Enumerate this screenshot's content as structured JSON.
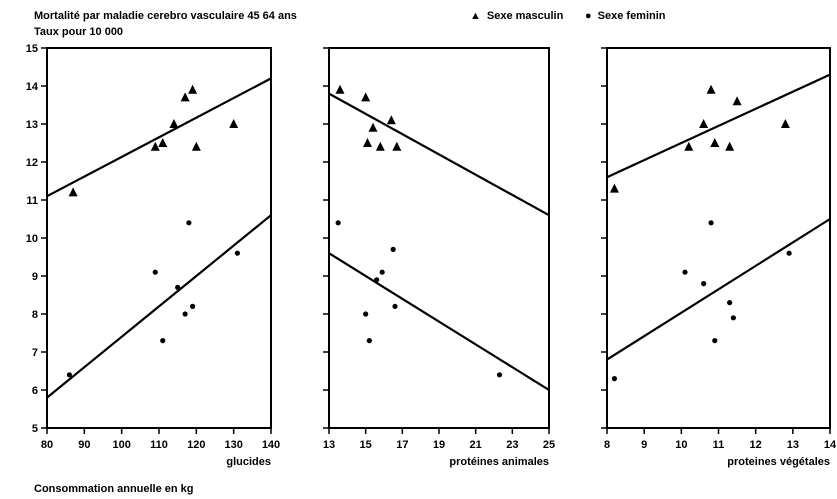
{
  "title": "Mortalité par maladie cerebro vasculaire 45 64 ans",
  "ylabel": "Taux pour 10 000",
  "legend": {
    "male": "Sexe masculin",
    "female": "Sexe feminin"
  },
  "footer": "Consommation annuelle en kg",
  "chart_data": [
    {
      "type": "scatter",
      "xlabel": "glucides",
      "xlim": [
        80,
        140
      ],
      "ylim": [
        5,
        15
      ],
      "xticks": [
        "80",
        "90",
        "100",
        "110",
        "120",
        "130",
        "140"
      ],
      "yticks": [
        "5",
        "6",
        "7",
        "8",
        "9",
        "10",
        "11",
        "12",
        "13",
        "14",
        "15"
      ],
      "series": [
        {
          "name": "Sexe masculin",
          "marker": "triangle",
          "points": [
            [
              87,
              11.2
            ],
            [
              109,
              12.4
            ],
            [
              111,
              12.5
            ],
            [
              114,
              13.0
            ],
            [
              117,
              13.7
            ],
            [
              119,
              13.9
            ],
            [
              120,
              12.4
            ],
            [
              130,
              13.0
            ]
          ],
          "fit": [
            [
              80,
              11.1
            ],
            [
              140,
              14.2
            ]
          ]
        },
        {
          "name": "Sexe feminin",
          "marker": "dot",
          "points": [
            [
              86,
              6.4
            ],
            [
              109,
              9.1
            ],
            [
              111,
              7.3
            ],
            [
              115,
              8.7
            ],
            [
              117,
              8.0
            ],
            [
              118,
              10.4
            ],
            [
              119,
              8.2
            ],
            [
              131,
              9.6
            ]
          ],
          "fit": [
            [
              80,
              5.8
            ],
            [
              140,
              10.6
            ]
          ]
        }
      ]
    },
    {
      "type": "scatter",
      "xlabel": "protéines animales",
      "xlim": [
        13,
        25
      ],
      "ylim": [
        5,
        15
      ],
      "xticks": [
        "13",
        "15",
        "17",
        "19",
        "21",
        "23",
        "25"
      ],
      "series": [
        {
          "name": "Sexe masculin",
          "marker": "triangle",
          "points": [
            [
              13.6,
              13.9
            ],
            [
              15.0,
              13.7
            ],
            [
              15.1,
              12.5
            ],
            [
              15.4,
              12.9
            ],
            [
              15.8,
              12.4
            ],
            [
              16.4,
              13.1
            ],
            [
              16.7,
              12.4
            ]
          ],
          "fit": [
            [
              13,
              13.8
            ],
            [
              25,
              10.6
            ]
          ]
        },
        {
          "name": "Sexe feminin",
          "marker": "dot",
          "points": [
            [
              13.5,
              10.4
            ],
            [
              15.0,
              8.0
            ],
            [
              15.2,
              7.3
            ],
            [
              15.6,
              8.9
            ],
            [
              15.9,
              9.1
            ],
            [
              16.5,
              9.7
            ],
            [
              16.6,
              8.2
            ],
            [
              22.3,
              6.4
            ]
          ],
          "fit": [
            [
              13,
              9.6
            ],
            [
              25,
              6.0
            ]
          ]
        }
      ]
    },
    {
      "type": "scatter",
      "xlabel": "proteines végétales",
      "xlim": [
        8,
        14
      ],
      "ylim": [
        5,
        15
      ],
      "xticks": [
        "8",
        "9",
        "10",
        "11",
        "12",
        "13",
        "14"
      ],
      "series": [
        {
          "name": "Sexe masculin",
          "marker": "triangle",
          "points": [
            [
              8.2,
              11.3
            ],
            [
              10.2,
              12.4
            ],
            [
              10.6,
              13.0
            ],
            [
              10.8,
              13.9
            ],
            [
              10.9,
              12.5
            ],
            [
              11.3,
              12.4
            ],
            [
              11.5,
              13.6
            ],
            [
              12.8,
              13.0
            ]
          ],
          "fit": [
            [
              8,
              11.6
            ],
            [
              14,
              14.3
            ]
          ]
        },
        {
          "name": "Sexe feminin",
          "marker": "dot",
          "points": [
            [
              8.2,
              6.3
            ],
            [
              10.1,
              9.1
            ],
            [
              10.6,
              8.8
            ],
            [
              10.8,
              10.4
            ],
            [
              10.9,
              7.3
            ],
            [
              11.3,
              8.3
            ],
            [
              11.4,
              7.9
            ],
            [
              12.9,
              9.6
            ]
          ],
          "fit": [
            [
              8,
              6.8
            ],
            [
              14,
              10.5
            ]
          ]
        }
      ]
    }
  ]
}
